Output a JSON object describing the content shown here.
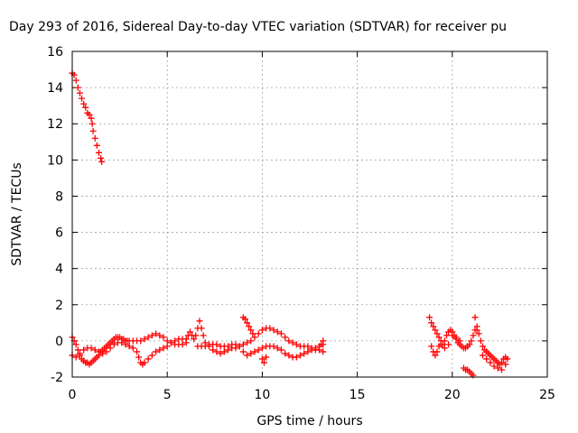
{
  "chart_data": {
    "type": "scatter",
    "title": "Day 293 of 2016, Sidereal Day-to-day VTEC variation (SDTVAR) for receiver pu",
    "xlabel": "GPS time / hours",
    "ylabel": "SDTVAR / TECUs",
    "xlim": [
      0,
      25
    ],
    "ylim": [
      -2,
      16
    ],
    "xticks": [
      "0",
      "5",
      "10",
      "15",
      "20",
      "25"
    ],
    "yticks": [
      "-2",
      "0",
      "2",
      "4",
      "6",
      "8",
      "10",
      "12",
      "14",
      "16"
    ],
    "grid": true,
    "marker": "plus",
    "color": "#ff0000",
    "series": [
      {
        "points": [
          [
            0.0,
            14.8
          ],
          [
            0.1,
            14.7
          ],
          [
            0.2,
            14.4
          ],
          [
            0.3,
            14.0
          ],
          [
            0.4,
            13.7
          ],
          [
            0.5,
            13.4
          ],
          [
            0.6,
            13.1
          ],
          [
            0.7,
            12.9
          ],
          [
            0.8,
            12.6
          ],
          [
            0.9,
            12.5
          ],
          [
            1.0,
            12.3
          ],
          [
            1.05,
            12.0
          ],
          [
            1.1,
            11.6
          ],
          [
            1.2,
            11.2
          ],
          [
            1.3,
            10.8
          ],
          [
            1.4,
            10.4
          ],
          [
            1.5,
            10.1
          ],
          [
            1.55,
            9.9
          ],
          [
            0.0,
            0.2
          ],
          [
            0.1,
            0.0
          ],
          [
            0.2,
            -0.2
          ],
          [
            0.3,
            -0.5
          ],
          [
            0.4,
            -0.8
          ],
          [
            0.5,
            -1.0
          ],
          [
            0.6,
            -1.1
          ],
          [
            0.7,
            -1.2
          ],
          [
            0.8,
            -1.2
          ],
          [
            0.9,
            -1.3
          ],
          [
            1.0,
            -1.2
          ],
          [
            1.1,
            -1.1
          ],
          [
            1.2,
            -1.0
          ],
          [
            1.3,
            -0.9
          ],
          [
            1.4,
            -0.8
          ],
          [
            1.5,
            -0.6
          ],
          [
            1.6,
            -0.5
          ],
          [
            1.7,
            -0.4
          ],
          [
            1.8,
            -0.3
          ],
          [
            1.9,
            -0.2
          ],
          [
            2.0,
            -0.1
          ],
          [
            2.1,
            0.0
          ],
          [
            2.2,
            0.1
          ],
          [
            2.3,
            0.2
          ],
          [
            2.4,
            0.2
          ],
          [
            2.5,
            0.2
          ],
          [
            2.6,
            0.1
          ],
          [
            2.7,
            0.1
          ],
          [
            2.8,
            0.0
          ],
          [
            2.9,
            0.0
          ],
          [
            3.0,
            0.0
          ],
          [
            3.2,
            0.0
          ],
          [
            3.4,
            0.0
          ],
          [
            3.6,
            0.0
          ],
          [
            3.8,
            0.1
          ],
          [
            4.0,
            0.2
          ],
          [
            4.2,
            0.3
          ],
          [
            4.4,
            0.4
          ],
          [
            4.6,
            0.3
          ],
          [
            4.8,
            0.2
          ],
          [
            5.0,
            0.0
          ],
          [
            5.2,
            -0.1
          ],
          [
            5.4,
            -0.2
          ],
          [
            5.6,
            -0.2
          ],
          [
            5.8,
            -0.2
          ],
          [
            6.0,
            -0.1
          ],
          [
            0.0,
            -0.8
          ],
          [
            0.2,
            -0.9
          ],
          [
            0.4,
            -0.7
          ],
          [
            0.6,
            -0.5
          ],
          [
            0.8,
            -0.4
          ],
          [
            1.0,
            -0.4
          ],
          [
            1.2,
            -0.5
          ],
          [
            1.4,
            -0.6
          ],
          [
            1.6,
            -0.7
          ],
          [
            1.8,
            -0.6
          ],
          [
            2.0,
            -0.4
          ],
          [
            2.2,
            -0.2
          ],
          [
            2.4,
            -0.1
          ],
          [
            2.6,
            -0.1
          ],
          [
            2.8,
            -0.2
          ],
          [
            3.0,
            -0.3
          ],
          [
            3.2,
            -0.4
          ],
          [
            3.4,
            -0.6
          ],
          [
            3.5,
            -0.9
          ],
          [
            3.6,
            -1.2
          ],
          [
            3.7,
            -1.3
          ],
          [
            3.8,
            -1.2
          ],
          [
            4.0,
            -1.0
          ],
          [
            4.2,
            -0.8
          ],
          [
            4.4,
            -0.6
          ],
          [
            4.6,
            -0.5
          ],
          [
            4.8,
            -0.4
          ],
          [
            5.0,
            -0.3
          ],
          [
            5.2,
            -0.1
          ],
          [
            5.4,
            0.0
          ],
          [
            5.6,
            0.1
          ],
          [
            5.8,
            0.1
          ],
          [
            6.0,
            0.1
          ],
          [
            6.1,
            0.3
          ],
          [
            6.2,
            0.5
          ],
          [
            6.3,
            0.3
          ],
          [
            6.4,
            0.1
          ],
          [
            6.5,
            0.3
          ],
          [
            6.6,
            0.7
          ],
          [
            6.7,
            1.1
          ],
          [
            6.8,
            0.7
          ],
          [
            6.9,
            0.3
          ],
          [
            7.0,
            -0.1
          ],
          [
            7.2,
            -0.3
          ],
          [
            7.4,
            -0.5
          ],
          [
            7.6,
            -0.6
          ],
          [
            7.8,
            -0.7
          ],
          [
            8.0,
            -0.6
          ],
          [
            8.2,
            -0.5
          ],
          [
            8.4,
            -0.4
          ],
          [
            8.6,
            -0.4
          ],
          [
            8.8,
            -0.3
          ],
          [
            9.0,
            -0.2
          ],
          [
            9.2,
            -0.1
          ],
          [
            9.4,
            0.0
          ],
          [
            9.6,
            0.2
          ],
          [
            9.8,
            0.4
          ],
          [
            10.0,
            0.6
          ],
          [
            10.2,
            0.7
          ],
          [
            10.4,
            0.7
          ],
          [
            10.6,
            0.6
          ],
          [
            10.8,
            0.5
          ],
          [
            11.0,
            0.4
          ],
          [
            11.2,
            0.2
          ],
          [
            11.4,
            0.0
          ],
          [
            11.6,
            -0.1
          ],
          [
            11.8,
            -0.2
          ],
          [
            12.0,
            -0.3
          ],
          [
            12.2,
            -0.3
          ],
          [
            12.4,
            -0.3
          ],
          [
            12.6,
            -0.4
          ],
          [
            12.8,
            -0.4
          ],
          [
            13.0,
            -0.3
          ],
          [
            13.2,
            -0.2
          ],
          [
            6.6,
            -0.3
          ],
          [
            6.8,
            -0.3
          ],
          [
            7.0,
            -0.3
          ],
          [
            7.2,
            -0.2
          ],
          [
            7.4,
            -0.2
          ],
          [
            7.6,
            -0.2
          ],
          [
            7.8,
            -0.3
          ],
          [
            8.0,
            -0.3
          ],
          [
            8.2,
            -0.3
          ],
          [
            8.4,
            -0.2
          ],
          [
            8.6,
            -0.2
          ],
          [
            8.8,
            -0.3
          ],
          [
            9.0,
            -0.6
          ],
          [
            9.2,
            -0.8
          ],
          [
            9.4,
            -0.7
          ],
          [
            9.6,
            -0.6
          ],
          [
            9.8,
            -0.5
          ],
          [
            10.0,
            -0.4
          ],
          [
            10.2,
            -0.3
          ],
          [
            10.4,
            -0.3
          ],
          [
            10.6,
            -0.3
          ],
          [
            10.8,
            -0.4
          ],
          [
            11.0,
            -0.5
          ],
          [
            11.2,
            -0.7
          ],
          [
            11.4,
            -0.8
          ],
          [
            11.6,
            -0.9
          ],
          [
            11.8,
            -0.9
          ],
          [
            12.0,
            -0.8
          ],
          [
            12.2,
            -0.7
          ],
          [
            12.4,
            -0.6
          ],
          [
            12.6,
            -0.5
          ],
          [
            12.8,
            -0.5
          ],
          [
            13.0,
            -0.5
          ],
          [
            13.2,
            -0.6
          ],
          [
            9.0,
            1.3
          ],
          [
            9.1,
            1.2
          ],
          [
            9.2,
            1.0
          ],
          [
            9.3,
            0.8
          ],
          [
            9.4,
            0.6
          ],
          [
            9.5,
            0.4
          ],
          [
            10.0,
            -1.0
          ],
          [
            10.1,
            -1.2
          ],
          [
            10.2,
            -0.9
          ],
          [
            13.2,
            0.0
          ],
          [
            13.1,
            -0.2
          ],
          [
            18.8,
            1.3
          ],
          [
            18.9,
            1.0
          ],
          [
            19.0,
            0.8
          ],
          [
            19.1,
            0.6
          ],
          [
            19.2,
            0.4
          ],
          [
            19.3,
            0.2
          ],
          [
            19.4,
            0.0
          ],
          [
            19.5,
            -0.2
          ],
          [
            19.6,
            0.0
          ],
          [
            19.7,
            0.3
          ],
          [
            19.8,
            0.5
          ],
          [
            19.9,
            0.6
          ],
          [
            20.0,
            0.5
          ],
          [
            20.1,
            0.3
          ],
          [
            20.2,
            0.1
          ],
          [
            20.3,
            -0.1
          ],
          [
            20.4,
            -0.2
          ],
          [
            20.5,
            -0.3
          ],
          [
            20.6,
            -0.4
          ],
          [
            20.7,
            -0.4
          ],
          [
            20.8,
            -0.3
          ],
          [
            20.9,
            -0.2
          ],
          [
            21.0,
            0.0
          ],
          [
            21.1,
            0.3
          ],
          [
            21.2,
            0.6
          ],
          [
            21.3,
            0.8
          ],
          [
            21.4,
            0.4
          ],
          [
            21.5,
            0.0
          ],
          [
            21.6,
            -0.3
          ],
          [
            21.7,
            -0.5
          ],
          [
            21.8,
            -0.6
          ],
          [
            21.9,
            -0.7
          ],
          [
            22.0,
            -0.8
          ],
          [
            22.1,
            -0.9
          ],
          [
            22.2,
            -1.0
          ],
          [
            22.3,
            -1.1
          ],
          [
            22.4,
            -1.2
          ],
          [
            22.5,
            -1.3
          ],
          [
            22.6,
            -1.2
          ],
          [
            22.7,
            -1.0
          ],
          [
            22.8,
            -0.9
          ],
          [
            22.9,
            -1.0
          ],
          [
            18.9,
            -0.3
          ],
          [
            19.0,
            -0.6
          ],
          [
            19.1,
            -0.8
          ],
          [
            19.2,
            -0.6
          ],
          [
            19.3,
            -0.3
          ],
          [
            19.4,
            -0.2
          ],
          [
            19.6,
            -0.4
          ],
          [
            19.8,
            -0.2
          ],
          [
            20.0,
            0.3
          ],
          [
            20.2,
            0.2
          ],
          [
            20.4,
            0.0
          ],
          [
            21.2,
            1.3
          ],
          [
            21.3,
            0.6
          ],
          [
            21.6,
            -0.8
          ],
          [
            21.8,
            -1.0
          ],
          [
            22.0,
            -1.2
          ],
          [
            22.2,
            -1.4
          ],
          [
            22.4,
            -1.5
          ],
          [
            22.6,
            -1.6
          ],
          [
            22.8,
            -1.3
          ],
          [
            20.6,
            -1.5
          ],
          [
            20.7,
            -1.6
          ],
          [
            20.8,
            -1.6
          ],
          [
            20.9,
            -1.7
          ],
          [
            21.0,
            -1.8
          ],
          [
            21.1,
            -1.9
          ]
        ]
      }
    ]
  }
}
